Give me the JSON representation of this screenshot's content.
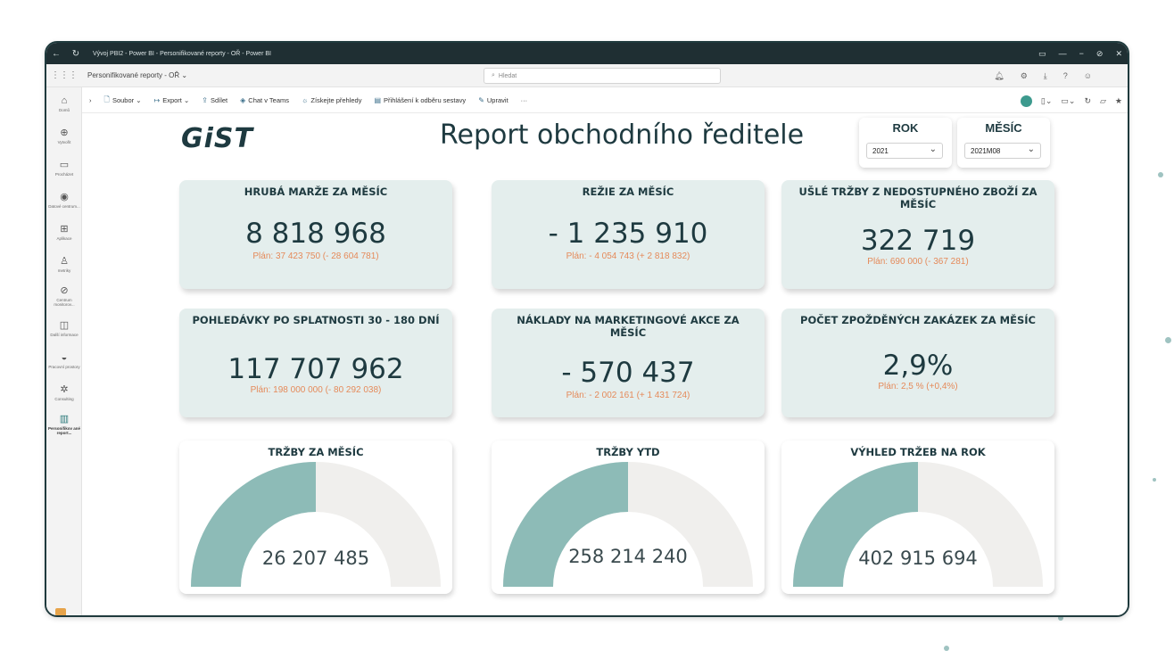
{
  "window": {
    "title": "Vývoj PBI2 - Power BI - Personifikované reporty - OŘ - Power BI",
    "controls": [
      "▭",
      "—",
      "−",
      "⊘",
      "✕"
    ]
  },
  "appbar": {
    "breadcrumb": "Personifikované reporty - OŘ ⌄",
    "search_placeholder": "Hledat"
  },
  "toolbar": {
    "items": [
      {
        "icon": "file-icon",
        "label": "Soubor ⌄"
      },
      {
        "icon": "export-icon",
        "label": "Export ⌄"
      },
      {
        "icon": "share-icon",
        "label": "Sdílet"
      },
      {
        "icon": "teams-icon",
        "label": "Chat v Teams"
      },
      {
        "icon": "insights-icon",
        "label": "Získejte přehledy"
      },
      {
        "icon": "subscribe-icon",
        "label": "Přihlášení k odběru sestavy"
      },
      {
        "icon": "edit-icon",
        "label": "Upravit"
      },
      {
        "icon": "more-icon",
        "label": "···"
      }
    ]
  },
  "leftnav": {
    "items": [
      {
        "icon": "⌂",
        "label": "Domů"
      },
      {
        "icon": "⊕",
        "label": "Vytvořit"
      },
      {
        "icon": "▭",
        "label": "Procházet"
      },
      {
        "icon": "◉",
        "label": "Datové centrum..."
      },
      {
        "icon": "⊞",
        "label": "Aplikace"
      },
      {
        "icon": "♙",
        "label": "metriky"
      },
      {
        "icon": "⊘",
        "label": "Centrum monitorov..."
      },
      {
        "icon": "◫",
        "label": "Další informace"
      },
      {
        "icon": "◒",
        "label": "Pracovní prostory"
      },
      {
        "icon": "✲",
        "label": "Consulting"
      },
      {
        "icon": "▥",
        "label": "Personifikov ané report..."
      }
    ]
  },
  "report": {
    "logo": "GiST",
    "title": "Report obchodního ředitele",
    "slicers": {
      "rok": {
        "title": "ROK",
        "value": "2021"
      },
      "mesic": {
        "title": "MĚSÍC",
        "value": "2021M08"
      }
    },
    "kpis": [
      {
        "title": "HRUBÁ MARŽE ZA MĚSÍC",
        "value": "8 818 968",
        "plan": "Plán: 37 423 750 (- 28 604 781)"
      },
      {
        "title": "REŽIE ZA MĚSÍC",
        "value": "- 1 235 910",
        "plan": "Plán: - 4 054 743 (+ 2 818 832)"
      },
      {
        "title": "UŠLÉ TRŽBY Z NEDOSTUPNÉHO ZBOŽÍ ZA MĚSÍC",
        "value": "322 719",
        "plan": "Plán: 690 000 (- 367 281)"
      },
      {
        "title": "POHLEDÁVKY PO SPLATNOSTI 30 - 180 DNÍ",
        "value": "117 707 962",
        "plan": "Plán: 198 000 000 (- 80 292 038)"
      },
      {
        "title": "NÁKLADY NA MARKETINGOVÉ AKCE ZA MĚSÍC",
        "value": "- 570 437",
        "plan": "Plán: - 2 002 161 (+ 1 431 724)"
      },
      {
        "title": "POČET ZPOŽDĚNÝCH ZAKÁZEK ZA MĚSÍC",
        "value": "2,9%",
        "plan": "Plán: 2,5 % (+0,4%)"
      }
    ],
    "gauges": [
      {
        "title": "TRŽBY ZA MĚSÍC",
        "value": "26 207 485",
        "fill_fraction": 0.5
      },
      {
        "title": "TRŽBY YTD",
        "value": "258 214 240",
        "fill_fraction": 0.5
      },
      {
        "title": "VÝHLED TRŽEB NA ROK",
        "value": "402 915 694",
        "fill_fraction": 0.5
      }
    ],
    "colors": {
      "gauge_fill": "#8dbbb7",
      "gauge_track": "#f0efed",
      "plan": "#e58a5a",
      "card_bg": "#e4eeed"
    }
  }
}
